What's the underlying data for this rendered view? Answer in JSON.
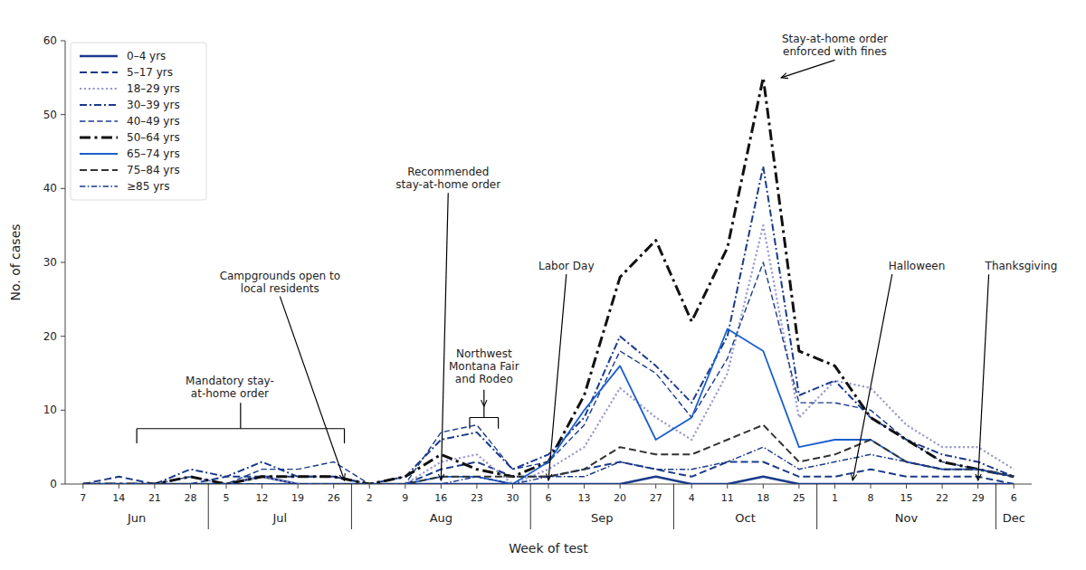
{
  "chart_data": {
    "type": "line",
    "title": "",
    "xlabel": "Week of test",
    "ylabel": "No. of cases",
    "categories": [
      "7",
      "14",
      "21",
      "28",
      "5",
      "12",
      "19",
      "26",
      "2",
      "9",
      "16",
      "23",
      "30",
      "6",
      "13",
      "20",
      "27",
      "4",
      "11",
      "18",
      "25",
      "1",
      "8",
      "15",
      "22",
      "29",
      "6"
    ],
    "month_labels": [
      "Jun",
      "Jul",
      "Aug",
      "Sep",
      "Oct",
      "Nov",
      "Dec"
    ],
    "ylim": [
      0,
      60
    ],
    "yticks": [
      0,
      10,
      20,
      30,
      40,
      50,
      60
    ],
    "grid": false,
    "legend": "upper left",
    "series": [
      {
        "name": "0–4 yrs",
        "color": "#1a3a8a",
        "line_style": "solid",
        "values": [
          0,
          0,
          0,
          0,
          0,
          1,
          0,
          0,
          0,
          0,
          0,
          0,
          0,
          0,
          0,
          0,
          1,
          0,
          0,
          1,
          0,
          0,
          0,
          0,
          0,
          0,
          0
        ]
      },
      {
        "name": "5–17 yrs",
        "color": "#1a3a8a",
        "line_style": "dashed",
        "values": [
          0,
          1,
          0,
          0,
          1,
          1,
          1,
          1,
          0,
          0,
          2,
          3,
          1,
          1,
          2,
          3,
          2,
          1,
          3,
          3,
          1,
          1,
          2,
          1,
          1,
          1,
          0
        ]
      },
      {
        "name": "18–29 yrs",
        "color": "#9999cc",
        "line_style": "dotted",
        "values": [
          0,
          0,
          0,
          1,
          0,
          1,
          0,
          0,
          0,
          0,
          3,
          4,
          0,
          2,
          5,
          13,
          9,
          6,
          15,
          35,
          9,
          14,
          13,
          8,
          5,
          5,
          2
        ]
      },
      {
        "name": "30–39 yrs",
        "color": "#1a3a8a",
        "line_style": "dashdot",
        "values": [
          0,
          0,
          0,
          2,
          1,
          3,
          1,
          1,
          0,
          1,
          6,
          7,
          2,
          4,
          9,
          20,
          16,
          11,
          20,
          43,
          12,
          14,
          9,
          6,
          4,
          3,
          1
        ]
      },
      {
        "name": "40–49 yrs",
        "color": "#1a3a8a",
        "line_style": "dashed",
        "values": [
          0,
          0,
          0,
          1,
          0,
          2,
          2,
          3,
          0,
          0,
          7,
          8,
          2,
          3,
          8,
          18,
          15,
          9,
          17,
          30,
          11,
          11,
          10,
          6,
          3,
          2,
          1
        ]
      },
      {
        "name": "50–64 yrs",
        "color": "#111111",
        "line_style": "dashdot",
        "values": [
          0,
          0,
          0,
          1,
          0,
          1,
          1,
          1,
          0,
          1,
          4,
          2,
          1,
          3,
          12,
          28,
          33,
          22,
          32,
          55,
          18,
          16,
          9,
          6,
          3,
          2,
          1
        ]
      },
      {
        "name": "65–74 yrs",
        "color": "#1a5fcc",
        "line_style": "solid",
        "values": [
          0,
          0,
          0,
          0,
          0,
          0,
          0,
          0,
          0,
          0,
          1,
          1,
          0,
          3,
          10,
          16,
          6,
          9,
          21,
          18,
          5,
          6,
          6,
          3,
          2,
          2,
          1
        ]
      },
      {
        "name": "75–84 yrs",
        "color": "#333333",
        "line_style": "dashed",
        "values": [
          0,
          0,
          0,
          0,
          0,
          0,
          0,
          0,
          0,
          0,
          1,
          1,
          1,
          1,
          2,
          5,
          4,
          4,
          6,
          8,
          3,
          4,
          6,
          3,
          2,
          2,
          1
        ]
      },
      {
        "name": "≥85 yrs",
        "color": "#1a3a8a",
        "line_style": "dashdot",
        "values": [
          0,
          0,
          0,
          0,
          0,
          0,
          0,
          0,
          0,
          0,
          0,
          1,
          0,
          1,
          1,
          3,
          2,
          2,
          3,
          5,
          2,
          3,
          4,
          3,
          2,
          2,
          1
        ]
      }
    ],
    "annotations": [
      "Mandatory stay-\nat-home order",
      "Campgrounds open to\nlocal residents",
      "Recommended\nstay-at-home order",
      "Northwest\nMontana Fair\nand Rodeo",
      "Labor Day",
      "Stay-at-home order\nenforced with fines",
      "Halloween",
      "Thanksgiving"
    ]
  }
}
